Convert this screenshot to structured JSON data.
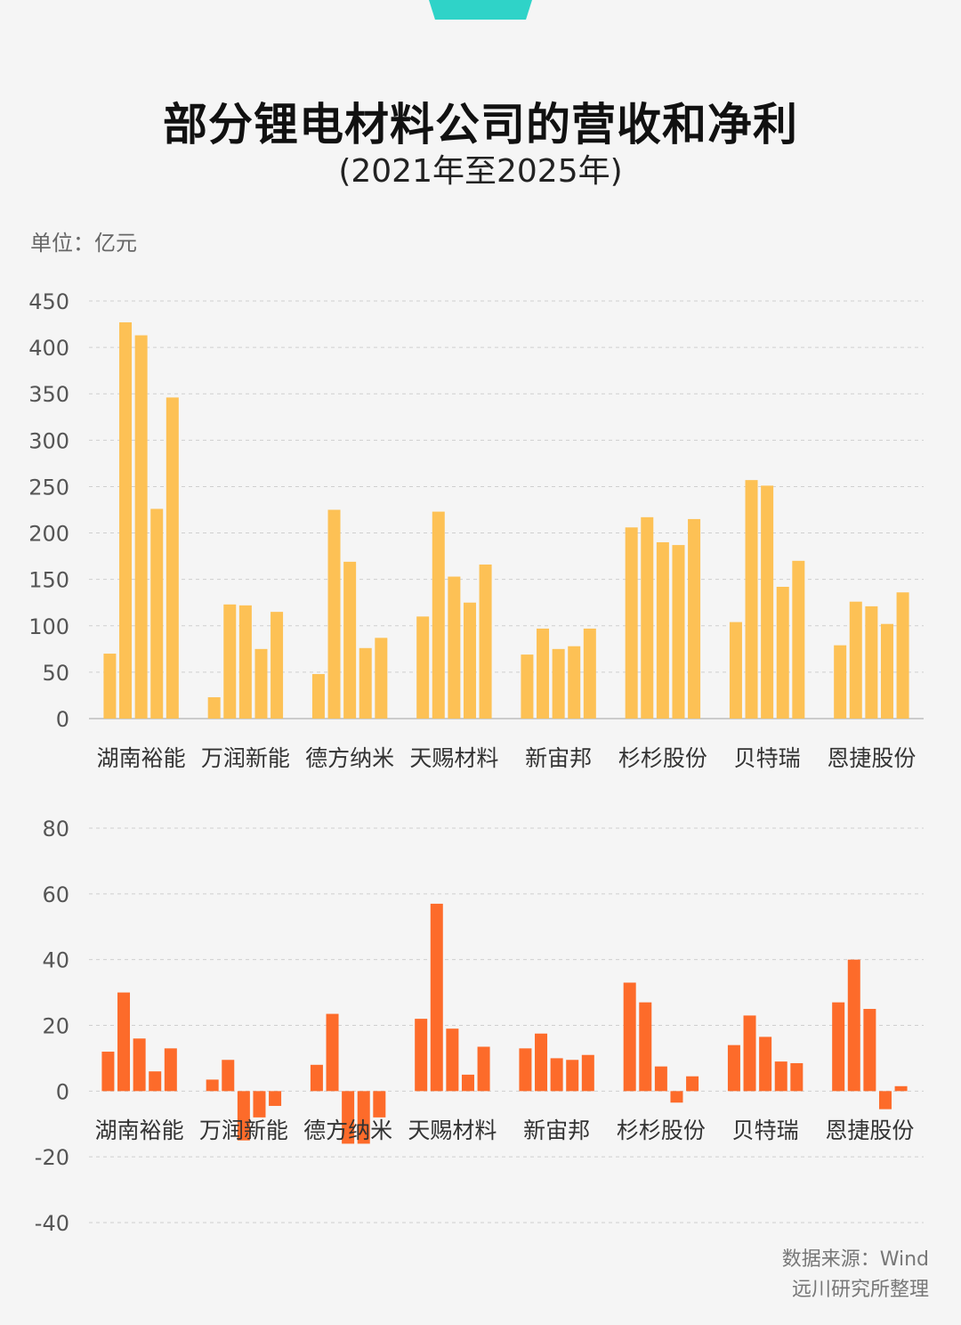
{
  "header": {
    "title": "部分锂电材料公司的营收和净利",
    "subtitle": "(2021年至2025年)"
  },
  "unit_label": "单位：亿元",
  "footer": {
    "source": "数据来源：Wind",
    "org": "远川研究所整理"
  },
  "colors": {
    "revenue": "#fdc155",
    "profit": "#fd6b2a",
    "grid": "#cfcfcf",
    "axis_text": "#555555",
    "accent_tab": "#2fd3c8"
  },
  "chart_data": [
    {
      "type": "bar",
      "categories": [
        "湖南裕能",
        "万润新能",
        "德方纳米",
        "天赐材料",
        "新宙邦",
        "杉杉股份",
        "贝特瑞",
        "恩捷股份"
      ],
      "series": [
        {
          "values": [
            70,
            23,
            48,
            110,
            69,
            206,
            104,
            79
          ]
        },
        {
          "values": [
            427,
            123,
            225,
            223,
            97,
            217,
            257,
            126
          ]
        },
        {
          "values": [
            413,
            122,
            169,
            153,
            75,
            190,
            251,
            121
          ]
        },
        {
          "values": [
            226,
            75,
            76,
            125,
            78,
            187,
            142,
            102
          ]
        },
        {
          "values": [
            346,
            115,
            87,
            166,
            97,
            215,
            170,
            136
          ]
        }
      ],
      "ylim": [
        0,
        450
      ],
      "yticks": [
        0,
        50,
        100,
        150,
        200,
        250,
        300,
        350,
        400,
        450
      ],
      "grid": true
    },
    {
      "type": "bar",
      "categories": [
        "湖南裕能",
        "万润新能",
        "德方纳米",
        "天赐材料",
        "新宙邦",
        "杉杉股份",
        "贝特瑞",
        "恩捷股份"
      ],
      "series": [
        {
          "values": [
            12,
            3.5,
            8,
            22,
            13,
            33,
            14,
            27
          ]
        },
        {
          "values": [
            30,
            9.5,
            23.5,
            57,
            17.5,
            27,
            23,
            40
          ]
        },
        {
          "values": [
            16,
            -15,
            -16,
            19,
            10,
            7.5,
            16.5,
            25
          ]
        },
        {
          "values": [
            6,
            -8,
            -16,
            5,
            9.5,
            -3.5,
            9,
            -5.5
          ]
        },
        {
          "values": [
            13,
            -4.5,
            -8,
            13.5,
            11,
            4.5,
            8.5,
            1.5
          ]
        }
      ],
      "ylim": [
        -40,
        80
      ],
      "yticks": [
        -40,
        -20,
        0,
        20,
        40,
        60,
        80
      ],
      "grid": true
    }
  ]
}
